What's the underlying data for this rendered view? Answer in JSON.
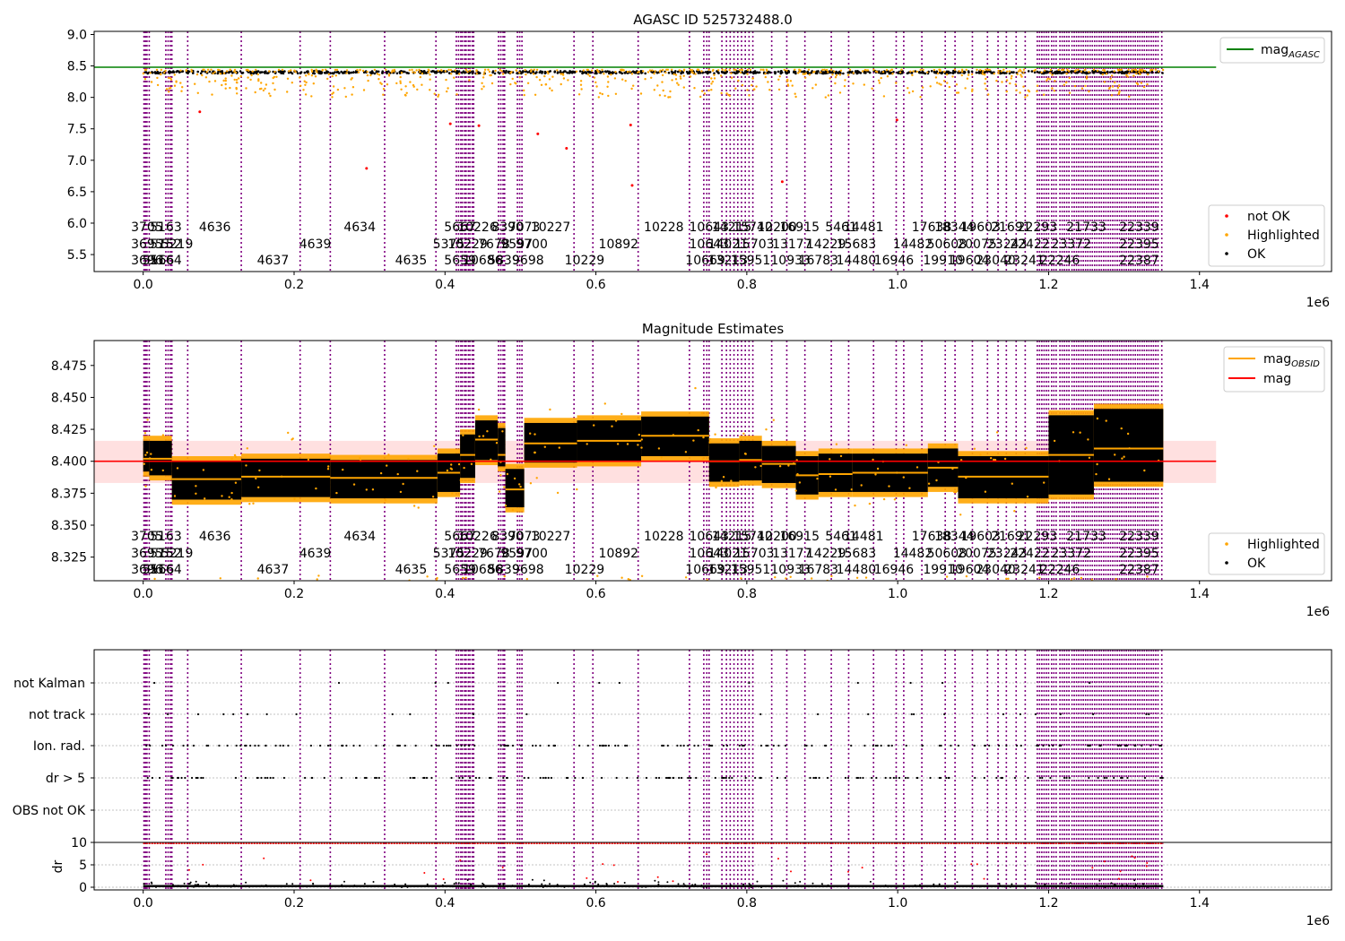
{
  "chart_data": [
    {
      "type": "scatter",
      "title": "AGASC ID 525732488.0",
      "xlim": [
        -65000,
        1575000
      ],
      "ylim": [
        5.23,
        9.05
      ],
      "x_ticks": [
        0.0,
        0.2,
        0.4,
        0.6,
        0.8,
        1.0,
        1.2,
        1.4
      ],
      "y_ticks": [
        5.5,
        6.0,
        6.5,
        7.0,
        7.5,
        8.0,
        8.5,
        9.0
      ],
      "x_offset_label": "1e6",
      "hline": {
        "y": 8.48,
        "x_range": [
          -65000,
          1422000
        ],
        "color": "#008000"
      },
      "series": [
        {
          "name": "not OK",
          "color": "#ff0000",
          "x": [
            75000,
            296000,
            407000,
            445000,
            523000,
            561000,
            646000,
            648000,
            847000,
            999000
          ],
          "y": [
            7.77,
            6.87,
            7.58,
            7.55,
            7.42,
            7.19,
            7.56,
            6.6,
            6.66,
            7.64
          ]
        },
        {
          "name": "Highlighted",
          "color": "#ffa500"
        },
        {
          "name": "OK",
          "color": "#000000"
        }
      ],
      "ok_band": [
        8.38,
        8.42
      ],
      "highlighted_band": [
        8.0,
        8.44
      ],
      "legend_top": {
        "label_main": "mag",
        "label_sub": "AGASC"
      },
      "legend_bottom": [
        "not OK",
        "Highlighted",
        "OK"
      ]
    },
    {
      "type": "scatter",
      "title": "Magnitude Estimates",
      "xlim": [
        -65000,
        1575000
      ],
      "ylim": [
        8.3065,
        8.4945
      ],
      "x_ticks": [
        0.0,
        0.2,
        0.4,
        0.6,
        0.8,
        1.0,
        1.2,
        1.4
      ],
      "y_ticks": [
        8.325,
        8.35,
        8.375,
        8.4,
        8.425,
        8.45,
        8.475
      ],
      "x_offset_label": "1e6",
      "mag_line": {
        "y": 8.4,
        "x_range": [
          -65000,
          1422000
        ],
        "band": [
          8.383,
          8.416
        ],
        "color": "#ff0000"
      },
      "obsid_segments": [
        {
          "x0": 0,
          "x1": 8000,
          "mean": 8.402,
          "low": 8.388,
          "high": 8.42
        },
        {
          "x0": 8000,
          "x1": 38000,
          "mean": 8.402,
          "low": 8.385,
          "high": 8.42
        },
        {
          "x0": 38000,
          "x1": 130000,
          "mean": 8.386,
          "low": 8.366,
          "high": 8.404
        },
        {
          "x0": 130000,
          "x1": 248000,
          "mean": 8.388,
          "low": 8.368,
          "high": 8.406
        },
        {
          "x0": 248000,
          "x1": 390000,
          "mean": 8.387,
          "low": 8.367,
          "high": 8.405
        },
        {
          "x0": 390000,
          "x1": 420000,
          "mean": 8.391,
          "low": 8.372,
          "high": 8.41
        },
        {
          "x0": 420000,
          "x1": 440000,
          "mean": 8.405,
          "low": 8.383,
          "high": 8.425
        },
        {
          "x0": 440000,
          "x1": 470000,
          "mean": 8.417,
          "low": 8.397,
          "high": 8.436
        },
        {
          "x0": 470000,
          "x1": 480000,
          "mean": 8.405,
          "low": 8.392,
          "high": 8.43
        },
        {
          "x0": 480000,
          "x1": 505000,
          "mean": 8.378,
          "low": 8.36,
          "high": 8.398
        },
        {
          "x0": 505000,
          "x1": 575000,
          "mean": 8.414,
          "low": 8.395,
          "high": 8.434
        },
        {
          "x0": 575000,
          "x1": 660000,
          "mean": 8.416,
          "low": 8.396,
          "high": 8.436
        },
        {
          "x0": 660000,
          "x1": 750000,
          "mean": 8.42,
          "low": 8.4,
          "high": 8.439
        },
        {
          "x0": 750000,
          "x1": 790000,
          "mean": 8.4,
          "low": 8.38,
          "high": 8.418
        },
        {
          "x0": 790000,
          "x1": 820000,
          "mean": 8.401,
          "low": 8.381,
          "high": 8.42
        },
        {
          "x0": 820000,
          "x1": 865000,
          "mean": 8.398,
          "low": 8.379,
          "high": 8.416
        },
        {
          "x0": 865000,
          "x1": 895000,
          "mean": 8.389,
          "low": 8.37,
          "high": 8.408
        },
        {
          "x0": 895000,
          "x1": 940000,
          "mean": 8.39,
          "low": 8.372,
          "high": 8.41
        },
        {
          "x0": 940000,
          "x1": 1040000,
          "mean": 8.391,
          "low": 8.372,
          "high": 8.41
        },
        {
          "x0": 1040000,
          "x1": 1080000,
          "mean": 8.395,
          "low": 8.376,
          "high": 8.414
        },
        {
          "x0": 1080000,
          "x1": 1200000,
          "mean": 8.388,
          "low": 8.367,
          "high": 8.408
        },
        {
          "x0": 1200000,
          "x1": 1260000,
          "mean": 8.405,
          "low": 8.37,
          "high": 8.44
        },
        {
          "x0": 1260000,
          "x1": 1352000,
          "mean": 8.41,
          "low": 8.38,
          "high": 8.445
        }
      ],
      "legend_top": [
        {
          "label_main": "mag",
          "label_sub": "OBSID",
          "color": "#ffa500"
        },
        {
          "label_main": "mag",
          "label_sub": "",
          "color": "#ff0000"
        }
      ],
      "legend_bottom": [
        "Highlighted",
        "OK"
      ]
    },
    {
      "type": "scatter",
      "title": "",
      "xlim": [
        -65000,
        1575000
      ],
      "categories": [
        "not Kalman",
        "not track",
        "Ion. rad.",
        "dr > 5",
        "OBS not OK"
      ],
      "dr_ticks": [
        0,
        5,
        10
      ],
      "dr_ylabel": "dr",
      "x_ticks": [
        0.0,
        0.2,
        0.4,
        0.6,
        0.8,
        1.0,
        1.2,
        1.4
      ],
      "x_offset_label": "1e6",
      "dr_threshold": 10,
      "dr_dense_x": [
        0,
        1352000
      ],
      "dr_max_line_value": 9.8
    }
  ],
  "obsids": [
    {
      "x": 5000,
      "label": "3705",
      "row": 0
    },
    {
      "x": 30000,
      "label": "5163",
      "row": 0
    },
    {
      "x": 95000,
      "label": "4636",
      "row": 0
    },
    {
      "x": 287000,
      "label": "4634",
      "row": 0
    },
    {
      "x": 420000,
      "label": "5667",
      "row": 0
    },
    {
      "x": 443000,
      "label": "10226",
      "row": 0
    },
    {
      "x": 483000,
      "label": "8390",
      "row": 0
    },
    {
      "x": 505000,
      "label": "7073",
      "row": 0
    },
    {
      "x": 540000,
      "label": "10227",
      "row": 0
    },
    {
      "x": 690000,
      "label": "10228",
      "row": 0
    },
    {
      "x": 750000,
      "label": "10643",
      "row": 0
    },
    {
      "x": 780000,
      "label": "14215",
      "row": 0
    },
    {
      "x": 808000,
      "label": "15740",
      "row": 0
    },
    {
      "x": 840000,
      "label": "12200",
      "row": 0
    },
    {
      "x": 870000,
      "label": "16915",
      "row": 0
    },
    {
      "x": 925000,
      "label": "5461",
      "row": 0
    },
    {
      "x": 955000,
      "label": "14481",
      "row": 0
    },
    {
      "x": 1045000,
      "label": "17638",
      "row": 0
    },
    {
      "x": 1075000,
      "label": "18344",
      "row": 0
    },
    {
      "x": 1110000,
      "label": "19603",
      "row": 0
    },
    {
      "x": 1150000,
      "label": "21691",
      "row": 0
    },
    {
      "x": 1185000,
      "label": "22293",
      "row": 0
    },
    {
      "x": 1250000,
      "label": "21733",
      "row": 0
    },
    {
      "x": 1320000,
      "label": "22339",
      "row": 0
    },
    {
      "x": 5000,
      "label": "3695",
      "row": 1
    },
    {
      "x": 30000,
      "label": "5152",
      "row": 1
    },
    {
      "x": 45000,
      "label": "5219",
      "row": 1
    },
    {
      "x": 228000,
      "label": "4639",
      "row": 1
    },
    {
      "x": 405000,
      "label": "5375",
      "row": 1
    },
    {
      "x": 430000,
      "label": "10229",
      "row": 1
    },
    {
      "x": 465000,
      "label": "7678",
      "row": 1
    },
    {
      "x": 495000,
      "label": "9597",
      "row": 1
    },
    {
      "x": 515000,
      "label": "9700",
      "row": 1
    },
    {
      "x": 630000,
      "label": "10892",
      "row": 1
    },
    {
      "x": 750000,
      "label": "10643",
      "row": 1
    },
    {
      "x": 775000,
      "label": "14021",
      "row": 1
    },
    {
      "x": 810000,
      "label": "15703",
      "row": 1
    },
    {
      "x": 860000,
      "label": "13177",
      "row": 1
    },
    {
      "x": 905000,
      "label": "14229",
      "row": 1
    },
    {
      "x": 945000,
      "label": "15683",
      "row": 1
    },
    {
      "x": 1020000,
      "label": "14482",
      "row": 1
    },
    {
      "x": 1065000,
      "label": "50608",
      "row": 1
    },
    {
      "x": 1105000,
      "label": "20075",
      "row": 1
    },
    {
      "x": 1145000,
      "label": "23243",
      "row": 1
    },
    {
      "x": 1175000,
      "label": "22422",
      "row": 1
    },
    {
      "x": 1230000,
      "label": "23372",
      "row": 1
    },
    {
      "x": 1320000,
      "label": "22395",
      "row": 1
    },
    {
      "x": 5000,
      "label": "3696",
      "row": 2
    },
    {
      "x": 20000,
      "label": "5166",
      "row": 2
    },
    {
      "x": 30000,
      "label": "5164",
      "row": 2
    },
    {
      "x": 172000,
      "label": "4637",
      "row": 2
    },
    {
      "x": 355000,
      "label": "4635",
      "row": 2
    },
    {
      "x": 420000,
      "label": "5659",
      "row": 2
    },
    {
      "x": 450000,
      "label": "10686",
      "row": 2
    },
    {
      "x": 478000,
      "label": "5839",
      "row": 2
    },
    {
      "x": 510000,
      "label": "9698",
      "row": 2
    },
    {
      "x": 585000,
      "label": "10229",
      "row": 2
    },
    {
      "x": 745000,
      "label": "10669",
      "row": 2
    },
    {
      "x": 775000,
      "label": "13213",
      "row": 2
    },
    {
      "x": 805000,
      "label": "15951",
      "row": 2
    },
    {
      "x": 858000,
      "label": "10933",
      "row": 2
    },
    {
      "x": 895000,
      "label": "16783",
      "row": 2
    },
    {
      "x": 945000,
      "label": "14480",
      "row": 2
    },
    {
      "x": 995000,
      "label": "16946",
      "row": 2
    },
    {
      "x": 1060000,
      "label": "19910",
      "row": 2
    },
    {
      "x": 1095000,
      "label": "19604",
      "row": 2
    },
    {
      "x": 1130000,
      "label": "23040",
      "row": 2
    },
    {
      "x": 1168000,
      "label": "23241",
      "row": 2
    },
    {
      "x": 1215000,
      "label": "22246",
      "row": 2
    },
    {
      "x": 1320000,
      "label": "22387",
      "row": 2
    }
  ],
  "obsid_starts": [
    1000,
    3000,
    5000,
    8000,
    30000,
    33000,
    36000,
    38000,
    59000,
    130000,
    208000,
    248000,
    320000,
    388000,
    415000,
    418000,
    421000,
    423000,
    426000,
    428000,
    431000,
    433000,
    436000,
    438000,
    471000,
    474000,
    477000,
    479000,
    496000,
    499000,
    502000,
    571000,
    596000,
    656000,
    724000,
    743000,
    747000,
    750000,
    767000,
    773000,
    778000,
    783000,
    788000,
    793000,
    798000,
    803000,
    808000,
    833000,
    853000,
    877000,
    912000,
    935000,
    968000,
    998000,
    1008000,
    1032000,
    1063000,
    1076000,
    1099000,
    1119000,
    1133000,
    1144000,
    1157000,
    1169000,
    1185000,
    1188000,
    1191000,
    1194000,
    1197000,
    1200000,
    1204000,
    1207000,
    1210000,
    1215000,
    1218000,
    1221000,
    1224000,
    1227000,
    1231000,
    1234000,
    1237000,
    1240000,
    1243000,
    1246000,
    1249000,
    1252000,
    1255000,
    1258000,
    1261000,
    1264000,
    1267000,
    1270000,
    1273000,
    1276000,
    1279000,
    1282000,
    1285000,
    1288000,
    1291000,
    1294000,
    1297000,
    1300000,
    1303000,
    1306000,
    1309000,
    1312000,
    1315000,
    1318000,
    1321000,
    1324000,
    1327000,
    1330000,
    1333000,
    1336000,
    1339000,
    1342000,
    1345000,
    1350000
  ]
}
